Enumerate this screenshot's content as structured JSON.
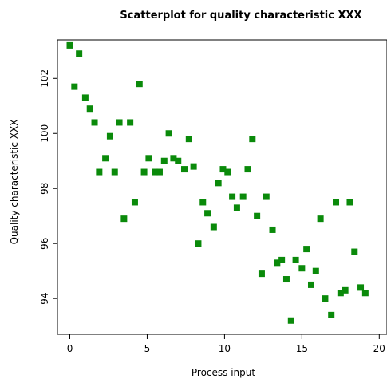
{
  "colors": {
    "marker": "#0a8a0a",
    "background": "#ffffff",
    "axis": "#000000"
  },
  "chart_data": {
    "type": "scatter",
    "title": "Scatterplot for quality characteristic XXX",
    "xlabel": "Process input",
    "ylabel": "Quality characteristic XXX",
    "xlim": [
      -0.8,
      20.5
    ],
    "ylim": [
      92.7,
      103.4
    ],
    "xticks": [
      0,
      5,
      10,
      15,
      20
    ],
    "yticks": [
      94,
      96,
      98,
      100,
      102
    ],
    "grid": false,
    "legend": "none",
    "points": [
      {
        "x": 0.0,
        "y": 103.2
      },
      {
        "x": 0.3,
        "y": 101.7
      },
      {
        "x": 0.6,
        "y": 102.9
      },
      {
        "x": 1.0,
        "y": 101.3
      },
      {
        "x": 1.3,
        "y": 100.9
      },
      {
        "x": 1.6,
        "y": 100.4
      },
      {
        "x": 1.9,
        "y": 98.6
      },
      {
        "x": 2.3,
        "y": 99.1
      },
      {
        "x": 2.6,
        "y": 99.9
      },
      {
        "x": 2.9,
        "y": 98.6
      },
      {
        "x": 3.2,
        "y": 100.4
      },
      {
        "x": 3.5,
        "y": 96.9
      },
      {
        "x": 3.9,
        "y": 100.4
      },
      {
        "x": 4.2,
        "y": 97.5
      },
      {
        "x": 4.5,
        "y": 101.8
      },
      {
        "x": 4.8,
        "y": 98.6
      },
      {
        "x": 5.1,
        "y": 99.1
      },
      {
        "x": 5.5,
        "y": 98.6
      },
      {
        "x": 5.8,
        "y": 98.6
      },
      {
        "x": 6.1,
        "y": 99.0
      },
      {
        "x": 6.4,
        "y": 100.0
      },
      {
        "x": 6.7,
        "y": 99.1
      },
      {
        "x": 7.0,
        "y": 99.0
      },
      {
        "x": 7.4,
        "y": 98.7
      },
      {
        "x": 7.7,
        "y": 99.8
      },
      {
        "x": 8.0,
        "y": 98.8
      },
      {
        "x": 8.3,
        "y": 96.0
      },
      {
        "x": 8.6,
        "y": 97.5
      },
      {
        "x": 8.9,
        "y": 97.1
      },
      {
        "x": 9.3,
        "y": 96.6
      },
      {
        "x": 9.6,
        "y": 98.2
      },
      {
        "x": 9.9,
        "y": 98.7
      },
      {
        "x": 10.2,
        "y": 98.6
      },
      {
        "x": 10.5,
        "y": 97.7
      },
      {
        "x": 10.8,
        "y": 97.3
      },
      {
        "x": 11.2,
        "y": 97.7
      },
      {
        "x": 11.5,
        "y": 98.7
      },
      {
        "x": 11.8,
        "y": 99.8
      },
      {
        "x": 12.1,
        "y": 97.0
      },
      {
        "x": 12.4,
        "y": 94.9
      },
      {
        "x": 12.7,
        "y": 97.7
      },
      {
        "x": 13.1,
        "y": 96.5
      },
      {
        "x": 13.4,
        "y": 95.3
      },
      {
        "x": 13.7,
        "y": 95.4
      },
      {
        "x": 14.0,
        "y": 94.7
      },
      {
        "x": 14.3,
        "y": 93.2
      },
      {
        "x": 14.6,
        "y": 95.4
      },
      {
        "x": 15.0,
        "y": 95.1
      },
      {
        "x": 15.3,
        "y": 95.8
      },
      {
        "x": 15.6,
        "y": 94.5
      },
      {
        "x": 15.9,
        "y": 95.0
      },
      {
        "x": 16.2,
        "y": 96.9
      },
      {
        "x": 16.5,
        "y": 94.0
      },
      {
        "x": 16.9,
        "y": 93.4
      },
      {
        "x": 17.2,
        "y": 97.5
      },
      {
        "x": 17.5,
        "y": 94.2
      },
      {
        "x": 17.8,
        "y": 94.3
      },
      {
        "x": 18.1,
        "y": 97.5
      },
      {
        "x": 18.4,
        "y": 95.7
      },
      {
        "x": 18.8,
        "y": 94.4
      },
      {
        "x": 19.1,
        "y": 94.2
      }
    ]
  }
}
